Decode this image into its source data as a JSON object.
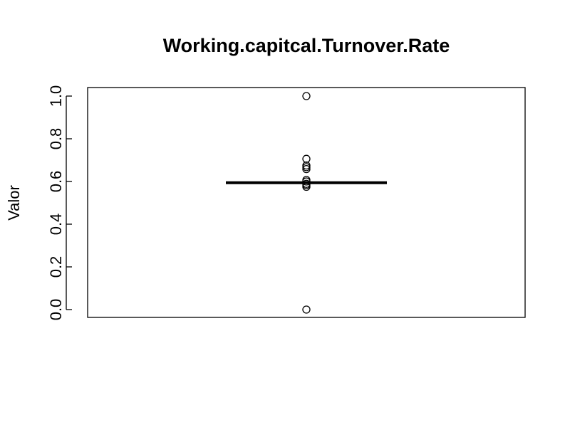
{
  "chart_data": {
    "type": "boxplot",
    "title": "Working.capitcal.Turnover.Rate",
    "xlabel": "",
    "ylabel": "Valor",
    "ylim": [
      0.0,
      1.0
    ],
    "yticks": [
      0.0,
      0.2,
      0.4,
      0.6,
      0.8,
      1.0
    ],
    "ytick_labels": [
      "0.0",
      "0.2",
      "0.4",
      "0.6",
      "0.8",
      "1.0"
    ],
    "grid": false,
    "legend": "none",
    "box": {
      "q1": 0.594,
      "median": 0.594,
      "q3": 0.594,
      "whisker_low": 0.594,
      "whisker_high": 0.594
    },
    "outliers": [
      1.0,
      0.706,
      0.675,
      0.667,
      0.658,
      0.607,
      0.6,
      0.589,
      0.583,
      0.575,
      0.0
    ],
    "colors": {
      "box": "#000000",
      "outlier": "#000000",
      "axis": "#000000"
    }
  }
}
